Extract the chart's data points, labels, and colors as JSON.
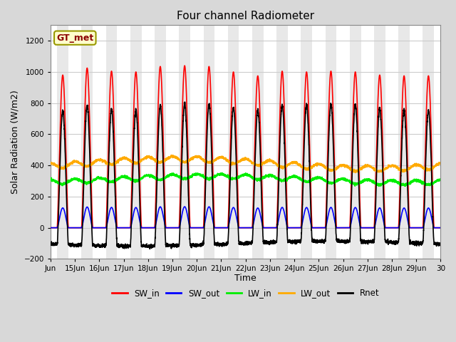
{
  "title": "Four channel Radiometer",
  "xlabel": "Time",
  "ylabel": "Solar Radiation (W/m2)",
  "ylim": [
    -200,
    1300
  ],
  "yticks": [
    -200,
    0,
    200,
    400,
    600,
    800,
    1000,
    1200
  ],
  "background_color": "#d8d8d8",
  "plot_bg_color": "#ffffff",
  "grid_color": "#cccccc",
  "band_day_color": "#e8e8e8",
  "band_night_color": "#f8f8f8",
  "legend_label": "GT_met",
  "legend_text_color": "#8b0000",
  "legend_bg_color": "#ffffcc",
  "legend_border_color": "#999900",
  "series": {
    "SW_in": {
      "color": "#ff0000",
      "lw": 1.2
    },
    "SW_out": {
      "color": "#0000ff",
      "lw": 1.2
    },
    "LW_in": {
      "color": "#00ee00",
      "lw": 1.2
    },
    "LW_out": {
      "color": "#ffaa00",
      "lw": 1.2
    },
    "Rnet": {
      "color": "#000000",
      "lw": 1.2
    }
  },
  "x_tick_labels": [
    "Jun",
    "15Jun",
    "16Jun",
    "17Jun",
    "18Jun",
    "19Jun",
    "20Jun",
    "21Jun",
    "22Jun",
    "23Jun",
    "24Jun",
    "25Jun",
    "26Jun",
    "27Jun",
    "28Jun",
    "29Jun",
    "30"
  ],
  "n_days": 16,
  "points_per_day": 288,
  "start_day": 14,
  "figsize": [
    6.4,
    4.8
  ],
  "dpi": 100
}
